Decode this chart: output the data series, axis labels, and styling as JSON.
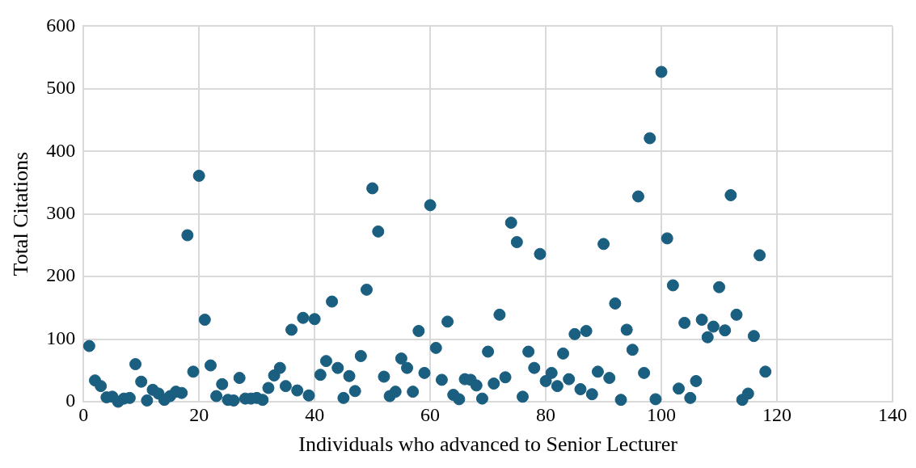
{
  "chart_data": {
    "type": "scatter",
    "xlabel": "Individuals who advanced to Senior Lecturer",
    "ylabel": "Total Citations",
    "x": [
      1,
      2,
      3,
      4,
      5,
      6,
      7,
      8,
      9,
      10,
      11,
      12,
      13,
      14,
      15,
      16,
      17,
      18,
      19,
      20,
      21,
      22,
      23,
      24,
      25,
      26,
      27,
      28,
      29,
      30,
      31,
      32,
      33,
      34,
      35,
      36,
      37,
      38,
      39,
      40,
      41,
      42,
      43,
      44,
      45,
      46,
      47,
      48,
      49,
      50,
      51,
      52,
      53,
      54,
      55,
      56,
      57,
      58,
      59,
      60,
      61,
      62,
      63,
      64,
      65,
      66,
      67,
      68,
      69,
      70,
      71,
      72,
      73,
      74,
      75,
      76,
      77,
      78,
      79,
      80,
      81,
      82,
      83,
      84,
      85,
      86,
      87,
      88,
      89,
      90,
      91,
      92,
      93,
      94,
      95,
      96,
      97,
      98,
      99,
      100,
      101,
      102,
      103,
      104,
      105,
      106,
      107,
      108,
      109,
      110,
      111,
      112,
      113,
      114,
      115,
      116,
      117,
      118
    ],
    "values": [
      89,
      34,
      25,
      7,
      8,
      0,
      5,
      6,
      60,
      32,
      2,
      19,
      13,
      3,
      9,
      16,
      14,
      266,
      48,
      361,
      131,
      58,
      9,
      28,
      3,
      2,
      38,
      5,
      5,
      6,
      3,
      22,
      42,
      54,
      25,
      115,
      18,
      134,
      10,
      132,
      43,
      65,
      160,
      54,
      6,
      41,
      17,
      73,
      179,
      341,
      272,
      40,
      9,
      16,
      69,
      54,
      16,
      113,
      46,
      314,
      86,
      35,
      128,
      11,
      4,
      36,
      35,
      26,
      5,
      80,
      29,
      139,
      39,
      286,
      255,
      8,
      80,
      54,
      236,
      33,
      46,
      25,
      77,
      36,
      108,
      20,
      113,
      12,
      48,
      252,
      38,
      157,
      3,
      115,
      83,
      328,
      46,
      421,
      4,
      527,
      261,
      186,
      21,
      126,
      6,
      33,
      131,
      103,
      120,
      183,
      114,
      330,
      139,
      3,
      13,
      105,
      234,
      48
    ],
    "color": "#1a5e80",
    "marker": "circle",
    "xlim": [
      0,
      140
    ],
    "xticks": [
      0,
      20,
      40,
      60,
      80,
      100,
      120,
      140
    ],
    "ylim": [
      0,
      600
    ],
    "yticks": [
      0,
      100,
      200,
      300,
      400,
      500,
      600
    ],
    "grid": true
  }
}
